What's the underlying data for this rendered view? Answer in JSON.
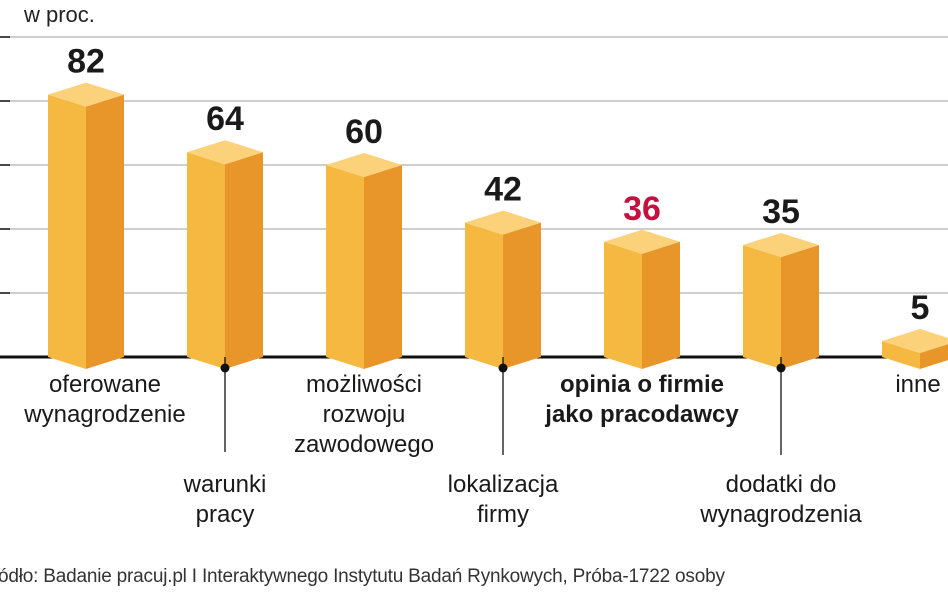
{
  "chart_data": {
    "type": "bar",
    "ylabel": "w proc.",
    "ylim": [
      0,
      100
    ],
    "grid": true,
    "categories": [
      "oferowane\nwynagrodzenie",
      "warunki\npracy",
      "możliwości\nrozwoju\nzawodowego",
      "lokalizacja\nfirmy",
      "opinia o firmie\njako pracodawcy",
      "dodatki do\nwynagrodzenia",
      "inne"
    ],
    "values": [
      82,
      64,
      60,
      42,
      36,
      35,
      5
    ],
    "value_labels": [
      "82",
      "64",
      "60",
      "42",
      "36",
      "35",
      "5"
    ],
    "highlight_index": 4,
    "colors": {
      "bar_front": "#f5b942",
      "bar_side": "#e8962a",
      "bar_top": "#fbd27a",
      "value_text": "#1a1a1a",
      "highlight_text": "#c4123f",
      "grid": "#b0b0b0",
      "axis": "#111111"
    }
  },
  "source": "ódło: Badanie  pracuj.pl I Interaktywnego Instytutu Badań Rynkowych, Próba-1722 osoby"
}
